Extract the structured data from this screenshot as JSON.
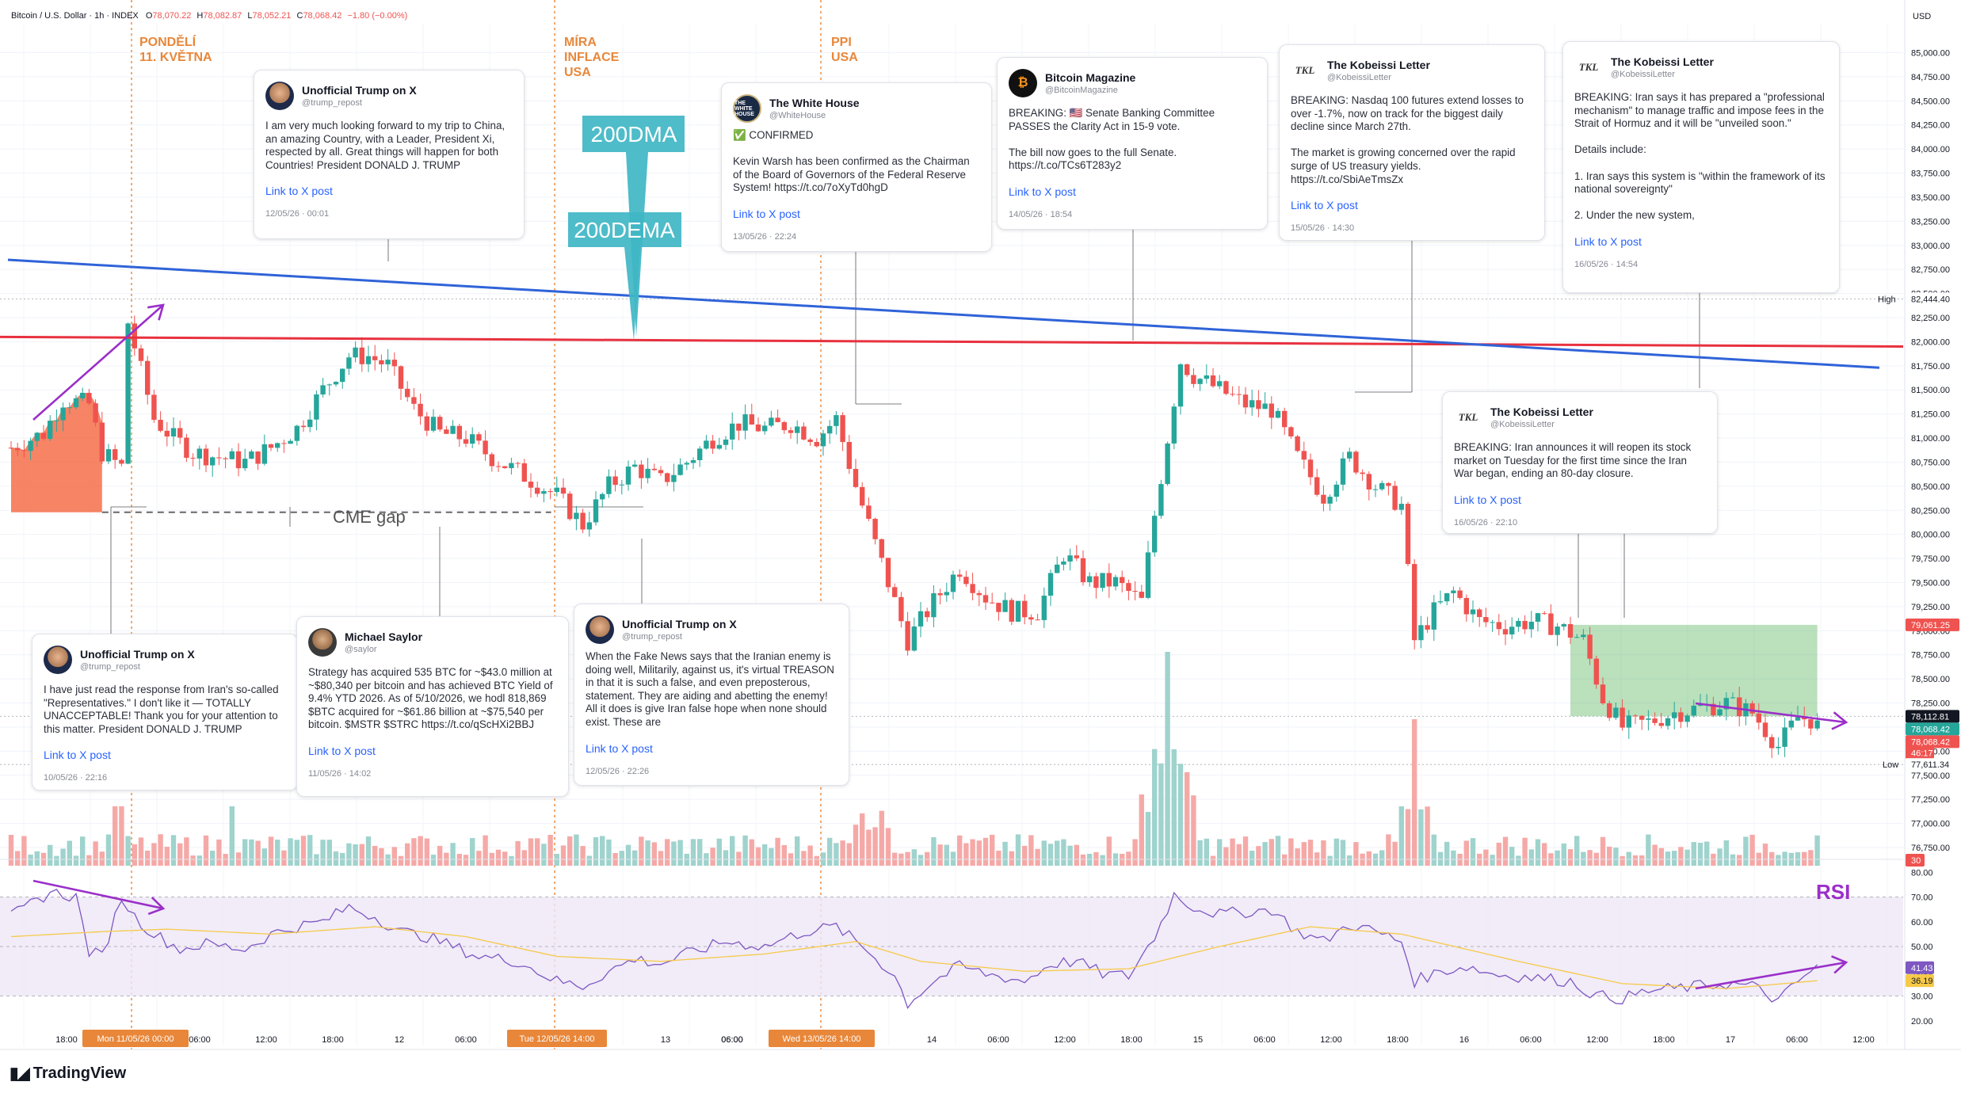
{
  "header": {
    "symbol": "Bitcoin / U.S. Dollar · 1h · INDEX",
    "o_label": "O",
    "o": "78,070.22",
    "h_label": "H",
    "h": "78,082.87",
    "l_label": "L",
    "l": "78,052.21",
    "c_label": "C",
    "c": "78,068.42",
    "change": "−1.80 (−0.00%)"
  },
  "currency": "USD",
  "colors": {
    "up": "#26a69a",
    "down": "#ef5350",
    "dma200": "#e8313f",
    "dema200": "#2f63d8",
    "annotation_orange": "#e8873a",
    "arrow_purple": "#9b2fc9",
    "callout_teal": "#3fb6c4",
    "rsi_line": "#7e57c2",
    "rsi_ma": "#f7c948",
    "rsi_band": "#ede7f6"
  },
  "event_labels": [
    {
      "lines": [
        "PONDĚLÍ",
        "11. KVĚTNA"
      ]
    },
    {
      "lines": [
        "MÍRA",
        "INFLACE",
        "USA"
      ]
    },
    {
      "lines": [
        "PPI",
        "USA"
      ]
    }
  ],
  "callouts": {
    "dma": "200DMA",
    "dema": "200DEMA"
  },
  "cme_gap_label": "CME gap",
  "rsi_label": "RSI",
  "y_axis_ticks": [
    "85,000.00",
    "84,750.00",
    "84,500.00",
    "84,250.00",
    "84,000.00",
    "83,750.00",
    "83,500.00",
    "83,250.00",
    "83,000.00",
    "82,750.00",
    "82,500.00",
    "82,250.00",
    "82,000.00",
    "81,750.00",
    "81,500.00",
    "81,250.00",
    "81,000.00",
    "80,750.00",
    "80,500.00",
    "80,250.00",
    "80,000.00",
    "79,750.00",
    "79,500.00",
    "79,250.00",
    "79,000.00",
    "78,750.00",
    "78,500.00",
    "78,250.00",
    "78,000.00",
    "77,750.00",
    "77,500.00",
    "77,250.00",
    "77,000.00",
    "76,750.00"
  ],
  "price_badges": {
    "high_label": "High",
    "high": "82,444.40",
    "p1": "79,061.25",
    "p2": "78,112.81",
    "p3": "78,068.42",
    "p4": "78,068.42",
    "countdown": "46:17",
    "low_label": "Low",
    "low": "77,611.34",
    "vol": "30"
  },
  "rsi_axis_ticks": [
    "80.00",
    "70.00",
    "60.00",
    "50.00",
    "40.00",
    "30.00",
    "20.00"
  ],
  "rsi_badges": {
    "rsi": "41.43",
    "ma": "36.19"
  },
  "x_axis_ticks": [
    "18:00",
    "06:00",
    "12:00",
    "18:00",
    "12",
    "06:00",
    "06:00",
    "13",
    "06:00",
    "06:00",
    "14",
    "06:00",
    "12:00",
    "18:00",
    "15",
    "06:00",
    "12:00",
    "18:00",
    "16",
    "06:00",
    "12:00",
    "18:00",
    "17",
    "06:00",
    "12:00"
  ],
  "x_axis_badges": [
    "Mon 11/05/26  00:00",
    "Tue 12/05/26  14:00",
    "Wed 13/05/26  14:00"
  ],
  "tweets": [
    {
      "name": "Unofficial Trump on X",
      "handle": "@trump_repost",
      "avatar": "trump",
      "text": "I am very much looking forward to my trip to China, an amazing Country, with a Leader, President Xi, respected by all. Great things will happen for both Countries! President DONALD J. TRUMP",
      "link": "Link to X post",
      "date": "12/05/26 · 00:01"
    },
    {
      "name": "The White House",
      "handle": "@WhiteHouse",
      "avatar": "wh",
      "avatar_text": "THE WHITE HOUSE",
      "text": "✅ CONFIRMED\n\nKevin Warsh has been confirmed as the Chairman of the Board of Governors of the Federal Reserve System! https://t.co/7oXyTd0hgD",
      "link": "Link to X post",
      "date": "13/05/26 · 22:24"
    },
    {
      "name": "Bitcoin Magazine",
      "handle": "@BitcoinMagazine",
      "avatar": "bm",
      "avatar_text": "₿",
      "text": "BREAKING: 🇺🇸 Senate Banking Committee PASSES the Clarity Act in 15-9 vote.\n\nThe bill now goes to the full Senate. https://t.co/TCs6T283y2",
      "link": "Link to X post",
      "date": "14/05/26 · 18:54"
    },
    {
      "name": "The Kobeissi Letter",
      "handle": "@KobeissiLetter",
      "avatar": "tkl",
      "avatar_text": "TKL",
      "text": "BREAKING: Nasdaq 100 futures extend losses to over -1.7%, now on track for the biggest daily decline since March 27th.\n\nThe market is growing concerned over the rapid surge of US treasury yields. https://t.co/SbiAeTmsZx",
      "link": "Link to X post",
      "date": "15/05/26 · 14:30"
    },
    {
      "name": "The Kobeissi Letter",
      "handle": "@KobeissiLetter",
      "avatar": "tkl",
      "avatar_text": "TKL",
      "text": "BREAKING: Iran says it has prepared a \"professional mechanism\" to manage traffic and impose fees in the Strait of Hormuz and it will be \"unveiled soon.\"\n\nDetails include:\n\n1. Iran says this system is \"within the framework of its national sovereignty\"\n\n2. Under the new system,",
      "link": "Link to X post",
      "date": "16/05/26 · 14:54"
    },
    {
      "name": "The Kobeissi Letter",
      "handle": "@KobeissiLetter",
      "avatar": "tkl",
      "avatar_text": "TKL",
      "text": "BREAKING: Iran announces it will reopen its stock market on Tuesday for the first time since the Iran War began, ending an 80-day closure.",
      "link": "Link to X post",
      "date": "16/05/26 · 22:10"
    },
    {
      "name": "Unofficial Trump on X",
      "handle": "@trump_repost",
      "avatar": "trump",
      "text": "I have just read the response from Iran's so-called \"Representatives.\" I don't like it — TOTALLY UNACCEPTABLE! Thank you for your attention to this matter. President DONALD J. TRUMP",
      "link": "Link to X post",
      "date": "10/05/26 · 22:16"
    },
    {
      "name": "Michael Saylor",
      "handle": "@saylor",
      "avatar": "saylor",
      "text": "Strategy has acquired 535 BTC for ~$43.0 million at ~$80,340 per bitcoin and has achieved BTC Yield of 9.4% YTD 2026. As of 5/10/2026, we hodl 818,869 $BTC acquired for ~$61.86 billion at ~$75,540 per bitcoin. $MSTR $STRC https://t.co/qScHXi2BBJ",
      "link": "Link to X post",
      "date": "11/05/26 · 14:02"
    },
    {
      "name": "Unofficial Trump on X",
      "handle": "@trump_repost",
      "avatar": "trump",
      "text": "When the Fake News says that the Iranian enemy is doing well, Militarily, against us, it's virtual TREASON in that it is such a false, and even preposterous, statement. They are aiding and abetting the enemy! All it does is give Iran false hope when none should exist. These are",
      "link": "Link to X post",
      "date": "12/05/26 · 22:26"
    }
  ],
  "brand": "TradingView",
  "chart_data": {
    "type": "candlestick",
    "title": "Bitcoin / U.S. Dollar · 1h · INDEX",
    "xlabel": "",
    "ylabel": "USD",
    "ylim": [
      76600,
      85150
    ],
    "rsi_ylim": [
      18,
      82
    ],
    "high": 82444.4,
    "low": 77611.34,
    "dma200": [
      [
        0,
        82050
      ],
      [
        290,
        81950
      ]
    ],
    "dema200": [
      [
        0,
        82850
      ],
      [
        290,
        81730
      ]
    ],
    "cme_gap": {
      "from_bar": 0,
      "to_bar": 88,
      "price": 80230
    },
    "anchors": [
      {
        "bar": 0,
        "close": 80900
      },
      {
        "bar": 5,
        "close": 81050
      },
      {
        "bar": 8,
        "close": 81400
      },
      {
        "bar": 12,
        "close": 81350
      },
      {
        "bar": 14,
        "close": 80850
      },
      {
        "bar": 17,
        "close": 80700
      },
      {
        "bar": 18,
        "close": 82200
      },
      {
        "bar": 20,
        "close": 81700
      },
      {
        "bar": 22,
        "close": 81200
      },
      {
        "bar": 25,
        "close": 81000
      },
      {
        "bar": 28,
        "close": 80850
      },
      {
        "bar": 32,
        "close": 80800
      },
      {
        "bar": 36,
        "close": 80750
      },
      {
        "bar": 40,
        "close": 80900
      },
      {
        "bar": 44,
        "close": 81100
      },
      {
        "bar": 48,
        "close": 81500
      },
      {
        "bar": 52,
        "close": 81850
      },
      {
        "bar": 55,
        "close": 81850
      },
      {
        "bar": 58,
        "close": 81750
      },
      {
        "bar": 62,
        "close": 81300
      },
      {
        "bar": 66,
        "close": 81050
      },
      {
        "bar": 70,
        "close": 81000
      },
      {
        "bar": 74,
        "close": 80800
      },
      {
        "bar": 78,
        "close": 80650
      },
      {
        "bar": 84,
        "close": 80400
      },
      {
        "bar": 88,
        "close": 80100
      },
      {
        "bar": 92,
        "close": 80500
      },
      {
        "bar": 96,
        "close": 80700
      },
      {
        "bar": 100,
        "close": 80550
      },
      {
        "bar": 104,
        "close": 80750
      },
      {
        "bar": 108,
        "close": 81000
      },
      {
        "bar": 112,
        "close": 81150
      },
      {
        "bar": 116,
        "close": 81100
      },
      {
        "bar": 120,
        "close": 81150
      },
      {
        "bar": 124,
        "close": 81000
      },
      {
        "bar": 127,
        "close": 81200
      },
      {
        "bar": 130,
        "close": 80500
      },
      {
        "bar": 134,
        "close": 79700
      },
      {
        "bar": 138,
        "close": 78900
      },
      {
        "bar": 142,
        "close": 79300
      },
      {
        "bar": 146,
        "close": 79650
      },
      {
        "bar": 150,
        "close": 79350
      },
      {
        "bar": 154,
        "close": 79200
      },
      {
        "bar": 158,
        "close": 79200
      },
      {
        "bar": 162,
        "close": 79800
      },
      {
        "bar": 166,
        "close": 79500
      },
      {
        "bar": 170,
        "close": 79500
      },
      {
        "bar": 174,
        "close": 79300
      },
      {
        "bar": 176,
        "close": 80200
      },
      {
        "bar": 178,
        "close": 81000
      },
      {
        "bar": 180,
        "close": 81800
      },
      {
        "bar": 182,
        "close": 81650
      },
      {
        "bar": 186,
        "close": 81500
      },
      {
        "bar": 190,
        "close": 81350
      },
      {
        "bar": 194,
        "close": 81300
      },
      {
        "bar": 198,
        "close": 80800
      },
      {
        "bar": 202,
        "close": 80400
      },
      {
        "bar": 206,
        "close": 80800
      },
      {
        "bar": 210,
        "close": 80500
      },
      {
        "bar": 214,
        "close": 80300
      },
      {
        "bar": 216,
        "close": 78900
      },
      {
        "bar": 219,
        "close": 79200
      },
      {
        "bar": 222,
        "close": 79400
      },
      {
        "bar": 226,
        "close": 79100
      },
      {
        "bar": 230,
        "close": 79050
      },
      {
        "bar": 234,
        "close": 79100
      },
      {
        "bar": 238,
        "close": 79050
      },
      {
        "bar": 242,
        "close": 78900
      },
      {
        "bar": 245,
        "close": 78300
      },
      {
        "bar": 248,
        "close": 78000
      },
      {
        "bar": 252,
        "close": 78050
      },
      {
        "bar": 256,
        "close": 78150
      },
      {
        "bar": 260,
        "close": 78200
      },
      {
        "bar": 264,
        "close": 78250
      },
      {
        "bar": 268,
        "close": 78150
      },
      {
        "bar": 272,
        "close": 77800
      },
      {
        "bar": 275,
        "close": 78100
      },
      {
        "bar": 278,
        "close": 78068.42
      }
    ],
    "rsi_anchors": [
      [
        0,
        62
      ],
      [
        6,
        72
      ],
      [
        10,
        70
      ],
      [
        12,
        48
      ],
      [
        14,
        46
      ],
      [
        17,
        70
      ],
      [
        19,
        62
      ],
      [
        22,
        55
      ],
      [
        26,
        49
      ],
      [
        30,
        51
      ],
      [
        36,
        49
      ],
      [
        40,
        55
      ],
      [
        44,
        58
      ],
      [
        48,
        60
      ],
      [
        52,
        66
      ],
      [
        56,
        62
      ],
      [
        60,
        56
      ],
      [
        64,
        54
      ],
      [
        68,
        50
      ],
      [
        72,
        46
      ],
      [
        78,
        44
      ],
      [
        84,
        36
      ],
      [
        88,
        34
      ],
      [
        92,
        40
      ],
      [
        96,
        45
      ],
      [
        100,
        43
      ],
      [
        104,
        47
      ],
      [
        110,
        52
      ],
      [
        116,
        50
      ],
      [
        122,
        56
      ],
      [
        127,
        58
      ],
      [
        132,
        48
      ],
      [
        136,
        38
      ],
      [
        138,
        27
      ],
      [
        142,
        36
      ],
      [
        146,
        42
      ],
      [
        150,
        39
      ],
      [
        156,
        36
      ],
      [
        160,
        43
      ],
      [
        164,
        44
      ],
      [
        168,
        39
      ],
      [
        172,
        38
      ],
      [
        176,
        54
      ],
      [
        179,
        71
      ],
      [
        182,
        66
      ],
      [
        186,
        63
      ],
      [
        190,
        64
      ],
      [
        194,
        65
      ],
      [
        198,
        56
      ],
      [
        202,
        52
      ],
      [
        206,
        59
      ],
      [
        210,
        56
      ],
      [
        214,
        52
      ],
      [
        216,
        36
      ],
      [
        220,
        40
      ],
      [
        224,
        42
      ],
      [
        228,
        39
      ],
      [
        232,
        38
      ],
      [
        236,
        37
      ],
      [
        240,
        36
      ],
      [
        244,
        30
      ],
      [
        248,
        29
      ],
      [
        252,
        32
      ],
      [
        256,
        33
      ],
      [
        260,
        34
      ],
      [
        264,
        35
      ],
      [
        268,
        34
      ],
      [
        272,
        28
      ],
      [
        276,
        38
      ],
      [
        278,
        41.43
      ]
    ],
    "rsi_ma_anchors": [
      [
        0,
        54
      ],
      [
        14,
        56
      ],
      [
        24,
        57
      ],
      [
        40,
        55
      ],
      [
        56,
        58
      ],
      [
        70,
        54
      ],
      [
        84,
        46
      ],
      [
        100,
        44
      ],
      [
        116,
        47
      ],
      [
        130,
        52
      ],
      [
        140,
        44
      ],
      [
        156,
        40
      ],
      [
        172,
        41
      ],
      [
        186,
        50
      ],
      [
        200,
        58
      ],
      [
        214,
        55
      ],
      [
        232,
        44
      ],
      [
        248,
        35
      ],
      [
        264,
        33
      ],
      [
        278,
        36.19
      ]
    ]
  }
}
